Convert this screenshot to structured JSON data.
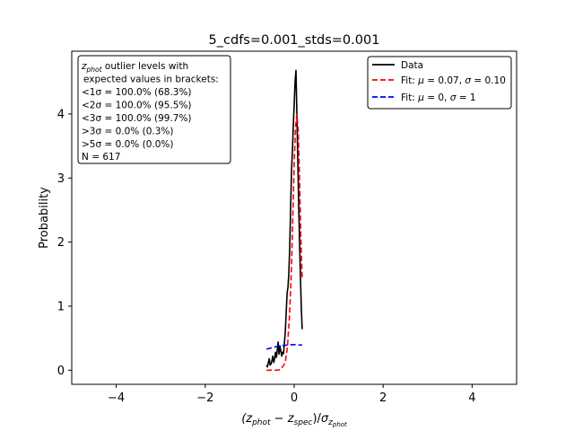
{
  "chart_data": {
    "type": "line",
    "title": "5_cdfs=0.001_stds=0.001",
    "xlabel": "(z_phot − z_spec)/σ_z_phot",
    "ylabel": "Probability",
    "xlim": [
      -5,
      5
    ],
    "ylim": [
      -0.22,
      4.98
    ],
    "x_ticks": [
      -4,
      -2,
      0,
      2,
      4
    ],
    "x_tick_labels": [
      "−4",
      "−2",
      "0",
      "2",
      "4"
    ],
    "y_ticks": [
      0,
      1,
      2,
      3,
      4
    ],
    "y_tick_labels": [
      "0",
      "1",
      "2",
      "3",
      "4"
    ],
    "grid": false,
    "legend_position": "top-right",
    "series": [
      {
        "name": "Data",
        "legend_label": "Data",
        "color": "#000000",
        "dash": "solid",
        "x": [
          -0.62,
          -0.6,
          -0.58,
          -0.56,
          -0.54,
          -0.52,
          -0.5,
          -0.48,
          -0.46,
          -0.44,
          -0.42,
          -0.4,
          -0.38,
          -0.36,
          -0.34,
          -0.32,
          -0.3,
          -0.28,
          -0.26,
          -0.24,
          -0.22,
          -0.2,
          -0.18,
          -0.16,
          -0.14,
          -0.12,
          -0.1,
          -0.08,
          -0.06,
          -0.04,
          -0.02,
          0.0,
          0.02,
          0.04,
          0.06,
          0.08,
          0.1,
          0.12,
          0.14,
          0.16,
          0.18
        ],
        "y": [
          0.08,
          0.05,
          0.12,
          0.18,
          0.08,
          0.1,
          0.15,
          0.22,
          0.12,
          0.18,
          0.28,
          0.2,
          0.32,
          0.44,
          0.25,
          0.38,
          0.3,
          0.22,
          0.28,
          0.26,
          0.42,
          0.6,
          0.9,
          1.2,
          1.3,
          1.5,
          1.9,
          2.5,
          3.1,
          3.4,
          3.8,
          4.15,
          4.5,
          4.68,
          4.0,
          3.3,
          2.6,
          2.0,
          1.5,
          1.0,
          0.64
        ]
      },
      {
        "name": "Fit: μ=0.07, σ=0.10",
        "legend_label": "Fit: μ = 0.07, σ = 0.10",
        "color": "#ff0000",
        "dash": "dashed",
        "x": [
          -0.62,
          -0.5,
          -0.4,
          -0.3,
          -0.2,
          -0.15,
          -0.1,
          -0.06,
          -0.03,
          0.0,
          0.03,
          0.06,
          0.09,
          0.12,
          0.15,
          0.18
        ],
        "y": [
          0.0,
          0.0,
          0.0,
          0.01,
          0.12,
          0.38,
          0.9,
          1.6,
          2.4,
          3.2,
          3.8,
          3.99,
          3.75,
          3.0,
          2.1,
          1.45
        ]
      },
      {
        "name": "Fit: μ=0, σ=1",
        "legend_label": "Fit: μ = 0, σ = 1",
        "color": "#0000ff",
        "dash": "dashed",
        "x": [
          -0.62,
          -0.5,
          -0.4,
          -0.3,
          -0.2,
          -0.1,
          0.0,
          0.1,
          0.18
        ],
        "y": [
          0.33,
          0.35,
          0.37,
          0.38,
          0.39,
          0.397,
          0.399,
          0.397,
          0.393
        ]
      }
    ]
  },
  "stats_box": {
    "lines": [
      "z_phot outlier levels with",
      "expected values in brackets:",
      "<1σ = 100.0% (68.3%)",
      "<2σ = 100.0% (95.5%)",
      "<3σ = 100.0% (99.7%)",
      ">3σ = 0.0% (0.3%)",
      ">5σ = 0.0% (0.0%)",
      "N = 617"
    ]
  }
}
